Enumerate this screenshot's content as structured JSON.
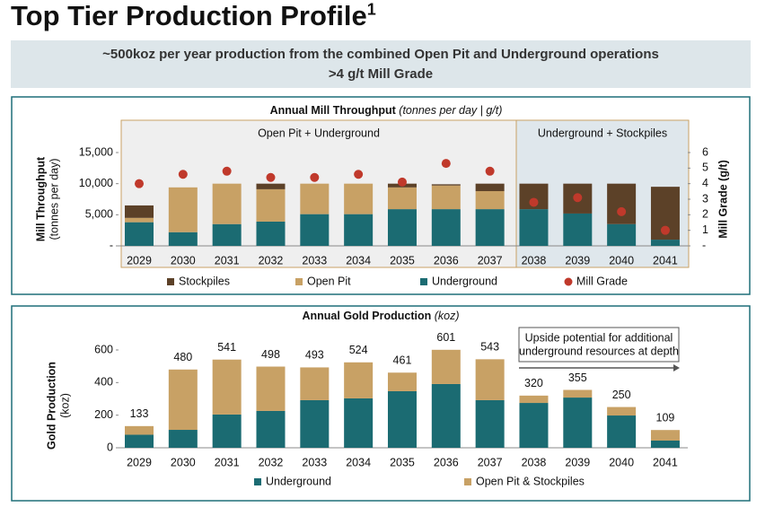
{
  "header": {
    "title": "Top Tier Production Profile",
    "title_sup": "1",
    "banner": [
      "~500koz per year production from the combined Open Pit and Underground operations",
      ">4 g/t Mill Grade"
    ]
  },
  "chart_data": [
    {
      "type": "bar",
      "stacked": true,
      "title": "Annual Mill Throughput",
      "title_unit": "(tonnes per day | g/t)",
      "regions": [
        "Open Pit + Underground",
        "Underground + Stockpiles"
      ],
      "y_label": [
        "Mill Throughput",
        "(tonnes per day)"
      ],
      "y2_label": "Mill Grade (g/t)",
      "categories": [
        "2029",
        "2030",
        "2031",
        "2032",
        "2033",
        "2034",
        "2035",
        "2036",
        "2037",
        "2038",
        "2039",
        "2040",
        "2041"
      ],
      "series": [
        {
          "name": "Underground",
          "color": "#1b6b72",
          "values": [
            3800,
            2200,
            3500,
            3900,
            5100,
            5100,
            5900,
            5900,
            5900,
            5900,
            5200,
            3500,
            1000
          ]
        },
        {
          "name": "Open Pit",
          "color": "#c8a165",
          "values": [
            700,
            7200,
            6500,
            5200,
            4900,
            4900,
            3500,
            3800,
            2900,
            0,
            0,
            0,
            0
          ]
        },
        {
          "name": "Stockpiles",
          "color": "#5c4128",
          "values": [
            2000,
            0,
            0,
            900,
            0,
            0,
            600,
            200,
            1200,
            4100,
            4800,
            6500,
            8500
          ]
        },
        {
          "name": "Mill Grade",
          "color": "#c0392b",
          "type": "scatter",
          "axis": "y2",
          "values": [
            4.0,
            4.6,
            4.8,
            4.4,
            4.4,
            4.6,
            4.1,
            5.3,
            4.8,
            2.8,
            3.1,
            2.2,
            1.0
          ]
        }
      ],
      "ylim": [
        0,
        15000
      ],
      "yticks": [
        {
          "value": 0,
          "label": "-"
        },
        {
          "value": 5000,
          "label": "5,000"
        },
        {
          "value": 10000,
          "label": "10,000"
        },
        {
          "value": 15000,
          "label": "15,000"
        }
      ],
      "y2lim": [
        0,
        6
      ],
      "y2ticks": [
        {
          "value": 0,
          "label": "-"
        },
        1,
        2,
        3,
        4,
        5,
        6
      ]
    },
    {
      "type": "bar",
      "stacked": true,
      "title": "Annual Gold Production",
      "title_unit": "(koz)",
      "y_label": [
        "Gold Production",
        "(koz)"
      ],
      "annotation": [
        "Upside potential for additional",
        "underground resources at depth"
      ],
      "categories": [
        "2029",
        "2030",
        "2031",
        "2032",
        "2033",
        "2034",
        "2035",
        "2036",
        "2037",
        "2038",
        "2039",
        "2040",
        "2041"
      ],
      "series": [
        {
          "name": "Underground",
          "color": "#1b6b72",
          "values": [
            80,
            110,
            204,
            226,
            292,
            303,
            347,
            391,
            292,
            275,
            308,
            198,
            44
          ]
        },
        {
          "name": "Open Pit & Stockpiles",
          "color": "#c8a165",
          "values": [
            53,
            370,
            337,
            272,
            201,
            221,
            114,
            210,
            251,
            45,
            47,
            52,
            65
          ]
        }
      ],
      "totals": [
        133,
        480,
        541,
        498,
        493,
        524,
        461,
        601,
        543,
        320,
        355,
        250,
        109
      ],
      "ylim": [
        0,
        600
      ],
      "yticks": [
        0,
        200,
        400,
        600
      ]
    }
  ]
}
